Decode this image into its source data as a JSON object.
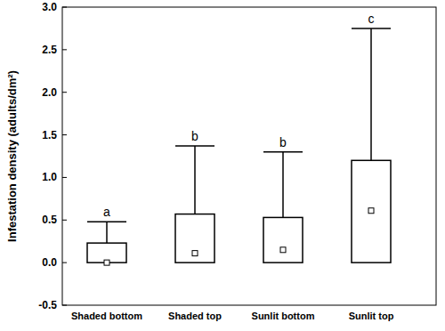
{
  "chart_data": {
    "type": "box",
    "y_label": "Infestation density (adults/dm²)",
    "categories": [
      "Shaded bottom",
      "Shaded top",
      "Sunlit bottom",
      "Sunlit top"
    ],
    "median": [
      0.0,
      0.11,
      0.15,
      0.61
    ],
    "q1": [
      0,
      0,
      0,
      0
    ],
    "q3": [
      0.23,
      0.57,
      0.53,
      1.2
    ],
    "whisker_high": [
      0.48,
      1.37,
      1.3,
      2.75
    ],
    "group_letters": [
      "a",
      "b",
      "b",
      "c"
    ],
    "ylim": [
      -0.5,
      3.0
    ],
    "yticks": [
      -0.5,
      {
        "value": 0,
        "label": "0.0"
      },
      0.5,
      {
        "value": 1,
        "label": "1.0"
      },
      1.5,
      {
        "value": 2,
        "label": "2.0"
      },
      2.5,
      {
        "value": 3,
        "label": "3.0"
      }
    ],
    "grid": false
  }
}
